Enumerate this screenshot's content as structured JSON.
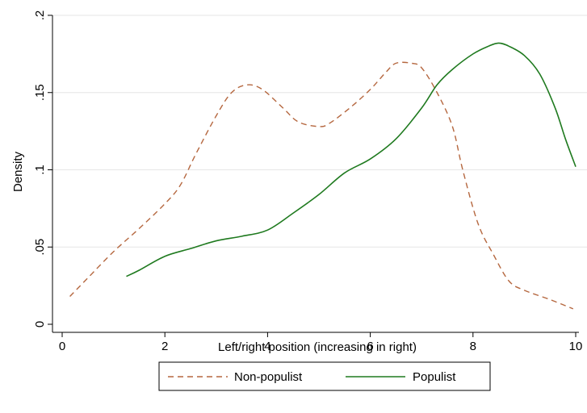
{
  "chart_data": {
    "type": "line",
    "title": "",
    "xlabel": "Left/right position (increasing in right)",
    "ylabel": "Density",
    "xlim": [
      0,
      10
    ],
    "ylim": [
      0,
      0.2
    ],
    "xticks": [
      0,
      2,
      4,
      6,
      8,
      10
    ],
    "xtick_labels": [
      "0",
      "2",
      "4",
      "6",
      "8",
      "10"
    ],
    "yticks": [
      0,
      0.05,
      0.1,
      0.15,
      0.2
    ],
    "ytick_labels": [
      "0",
      ".05",
      ".1",
      ".15",
      ".2"
    ],
    "grid": true,
    "legend_position": "bottom",
    "series": [
      {
        "name": "Non-populist",
        "color": "#b5673f",
        "line_style": "dashed",
        "points": [
          [
            0.15,
            0.018
          ],
          [
            0.5,
            0.03
          ],
          [
            1.0,
            0.047
          ],
          [
            1.5,
            0.062
          ],
          [
            2.0,
            0.078
          ],
          [
            2.3,
            0.09
          ],
          [
            2.6,
            0.11
          ],
          [
            3.0,
            0.135
          ],
          [
            3.3,
            0.15
          ],
          [
            3.6,
            0.155
          ],
          [
            3.9,
            0.152
          ],
          [
            4.3,
            0.14
          ],
          [
            4.6,
            0.131
          ],
          [
            5.0,
            0.128
          ],
          [
            5.2,
            0.13
          ],
          [
            5.6,
            0.14
          ],
          [
            6.0,
            0.152
          ],
          [
            6.3,
            0.163
          ],
          [
            6.5,
            0.169
          ],
          [
            6.8,
            0.169
          ],
          [
            7.0,
            0.166
          ],
          [
            7.3,
            0.15
          ],
          [
            7.6,
            0.128
          ],
          [
            7.8,
            0.1
          ],
          [
            8.1,
            0.065
          ],
          [
            8.4,
            0.045
          ],
          [
            8.7,
            0.028
          ],
          [
            9.0,
            0.022
          ],
          [
            9.5,
            0.016
          ],
          [
            9.95,
            0.01
          ]
        ]
      },
      {
        "name": "Populist",
        "color": "#1f7a1f",
        "line_style": "solid",
        "points": [
          [
            1.25,
            0.031
          ],
          [
            1.5,
            0.035
          ],
          [
            2.0,
            0.044
          ],
          [
            2.5,
            0.049
          ],
          [
            3.0,
            0.054
          ],
          [
            3.5,
            0.057
          ],
          [
            4.0,
            0.061
          ],
          [
            4.5,
            0.072
          ],
          [
            5.0,
            0.084
          ],
          [
            5.5,
            0.098
          ],
          [
            6.0,
            0.107
          ],
          [
            6.5,
            0.12
          ],
          [
            7.0,
            0.14
          ],
          [
            7.3,
            0.155
          ],
          [
            7.6,
            0.165
          ],
          [
            8.0,
            0.175
          ],
          [
            8.3,
            0.18
          ],
          [
            8.5,
            0.182
          ],
          [
            8.7,
            0.18
          ],
          [
            9.0,
            0.174
          ],
          [
            9.3,
            0.162
          ],
          [
            9.6,
            0.14
          ],
          [
            9.8,
            0.12
          ],
          [
            10.0,
            0.102
          ]
        ]
      }
    ]
  }
}
